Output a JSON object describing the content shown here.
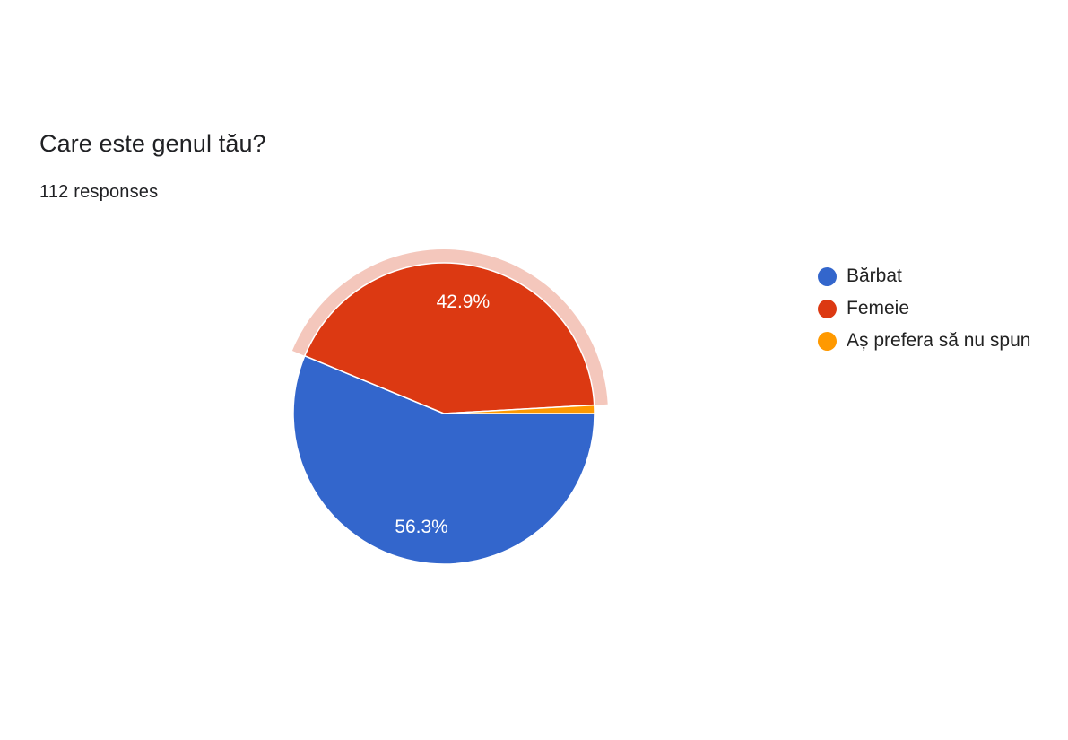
{
  "question": {
    "title": "Care este genul tău?",
    "responses_text": "112 responses"
  },
  "chart_data": {
    "type": "pie",
    "title": "Care este genul tău?",
    "total_responses": 112,
    "slices": [
      {
        "label": "Bărbat",
        "value": 63,
        "percent_label": "56.3%",
        "color": "#3366cc"
      },
      {
        "label": "Femeie",
        "value": 48,
        "percent_label": "42.9%",
        "color": "#dc3912",
        "highlighted": true
      },
      {
        "label": "Aș prefera să nu spun",
        "value": 1,
        "percent_label": "",
        "color": "#ff9900"
      }
    ],
    "legend_position": "right",
    "highlight_color": "#f4c7bc"
  }
}
